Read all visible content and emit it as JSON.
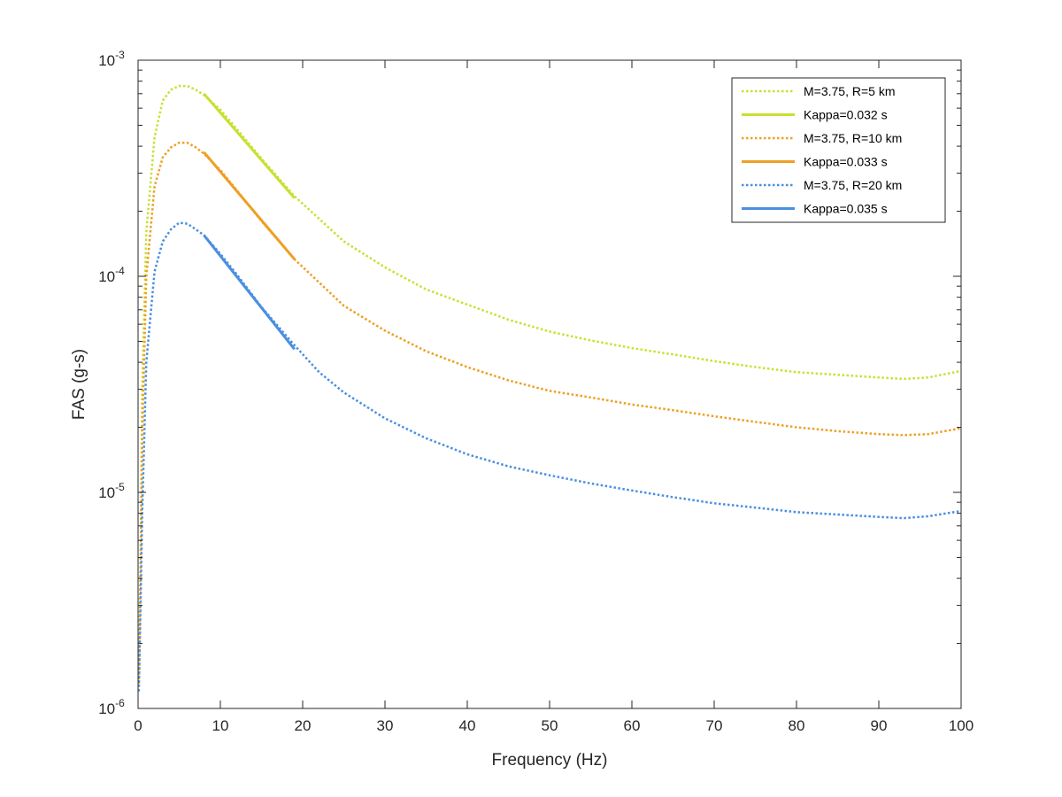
{
  "chart_data": {
    "type": "line",
    "title": "",
    "xlabel": "Frequency (Hz)",
    "ylabel": "FAS (g-s)",
    "xlim": [
      0,
      100
    ],
    "ylim": [
      1e-06,
      0.001
    ],
    "yscale": "log",
    "grid": false,
    "legend_position": "top-right",
    "x_ticks": [
      0,
      10,
      20,
      30,
      40,
      50,
      60,
      70,
      80,
      90,
      100
    ],
    "x_tick_labels": [
      "0",
      "10",
      "20",
      "30",
      "40",
      "50",
      "60",
      "70",
      "80",
      "90",
      "100"
    ],
    "y_ticks": [
      {
        "value": 1e-06,
        "base": "10",
        "exp": "-6"
      },
      {
        "value": 1e-05,
        "base": "10",
        "exp": "-5"
      },
      {
        "value": 0.0001,
        "base": "10",
        "exp": "-4"
      },
      {
        "value": 0.001,
        "base": "10",
        "exp": "-3"
      }
    ],
    "series": [
      {
        "name": "M=3.75, R=5 km",
        "color": "#C9E031",
        "style": "dotted",
        "points": [
          [
            0.1,
            1.5e-06
          ],
          [
            0.3,
            5e-06
          ],
          [
            0.5,
            3e-05
          ],
          [
            1,
            0.00016
          ],
          [
            2,
            0.00044
          ],
          [
            3,
            0.00065
          ],
          [
            4,
            0.00073
          ],
          [
            5,
            0.00076
          ],
          [
            6,
            0.00076
          ],
          [
            7,
            0.00073
          ],
          [
            8,
            0.00069
          ],
          [
            10,
            0.00059
          ],
          [
            12,
            0.00048
          ],
          [
            15,
            0.00035
          ],
          [
            19,
            0.000235
          ],
          [
            25,
            0.000145
          ],
          [
            30,
            0.00011
          ],
          [
            35,
            8.7e-05
          ],
          [
            40,
            7.4e-05
          ],
          [
            45,
            6.3e-05
          ],
          [
            50,
            5.55e-05
          ],
          [
            55,
            5.05e-05
          ],
          [
            60,
            4.65e-05
          ],
          [
            65,
            4.35e-05
          ],
          [
            70,
            4.05e-05
          ],
          [
            75,
            3.8e-05
          ],
          [
            80,
            3.6e-05
          ],
          [
            85,
            3.5e-05
          ],
          [
            90,
            3.4e-05
          ],
          [
            93,
            3.35e-05
          ],
          [
            96,
            3.4e-05
          ],
          [
            100,
            3.65e-05
          ]
        ]
      },
      {
        "name": "Kappa=0.032 s",
        "color": "#C9E031",
        "style": "solid",
        "points": [
          [
            8,
            0.0007
          ],
          [
            19,
            0.00023
          ]
        ]
      },
      {
        "name": "M=3.75, R=10 km",
        "color": "#EDA024",
        "style": "dotted",
        "points": [
          [
            0.1,
            1.3e-06
          ],
          [
            0.3,
            4e-06
          ],
          [
            0.5,
            1.9e-05
          ],
          [
            1,
            0.0001
          ],
          [
            2,
            0.00026
          ],
          [
            3,
            0.000355
          ],
          [
            4,
            0.000395
          ],
          [
            5,
            0.000415
          ],
          [
            6,
            0.000415
          ],
          [
            7,
            0.000395
          ],
          [
            8,
            0.00037
          ],
          [
            10,
            0.00031
          ],
          [
            12,
            0.00025
          ],
          [
            15,
            0.00018
          ],
          [
            19,
            0.00012
          ],
          [
            25,
            7.3e-05
          ],
          [
            30,
            5.6e-05
          ],
          [
            35,
            4.5e-05
          ],
          [
            40,
            3.8e-05
          ],
          [
            45,
            3.3e-05
          ],
          [
            50,
            2.95e-05
          ],
          [
            55,
            2.75e-05
          ],
          [
            60,
            2.55e-05
          ],
          [
            65,
            2.4e-05
          ],
          [
            70,
            2.25e-05
          ],
          [
            75,
            2.12e-05
          ],
          [
            80,
            2e-05
          ],
          [
            85,
            1.92e-05
          ],
          [
            90,
            1.86e-05
          ],
          [
            93,
            1.84e-05
          ],
          [
            96,
            1.86e-05
          ],
          [
            100,
            1.98e-05
          ]
        ]
      },
      {
        "name": "Kappa=0.033 s",
        "color": "#EDA024",
        "style": "solid",
        "points": [
          [
            8,
            0.000375
          ],
          [
            19,
            0.00012
          ]
        ]
      },
      {
        "name": "M=3.75, R=20 km",
        "color": "#4A8FE0",
        "style": "dotted",
        "points": [
          [
            0.1,
            1.2e-06
          ],
          [
            0.3,
            3e-06
          ],
          [
            0.5,
            8e-06
          ],
          [
            1,
            4e-05
          ],
          [
            2,
            0.000105
          ],
          [
            3,
            0.000145
          ],
          [
            4,
            0.000165
          ],
          [
            5,
            0.000177
          ],
          [
            6,
            0.000175
          ],
          [
            7,
            0.000165
          ],
          [
            8,
            0.000155
          ],
          [
            10,
            0.000127
          ],
          [
            12,
            0.000102
          ],
          [
            15,
            7.2e-05
          ],
          [
            19,
            4.8e-05
          ],
          [
            22,
            3.6e-05
          ],
          [
            25,
            2.9e-05
          ],
          [
            30,
            2.2e-05
          ],
          [
            35,
            1.78e-05
          ],
          [
            40,
            1.5e-05
          ],
          [
            45,
            1.32e-05
          ],
          [
            50,
            1.2e-05
          ],
          [
            55,
            1.1e-05
          ],
          [
            60,
            1.02e-05
          ],
          [
            65,
            9.5e-06
          ],
          [
            70,
            8.9e-06
          ],
          [
            75,
            8.5e-06
          ],
          [
            80,
            8.1e-06
          ],
          [
            85,
            7.9e-06
          ],
          [
            90,
            7.7e-06
          ],
          [
            93,
            7.6e-06
          ],
          [
            96,
            7.75e-06
          ],
          [
            100,
            8.2e-06
          ]
        ]
      },
      {
        "name": "Kappa=0.035 s",
        "color": "#4A8FE0",
        "style": "solid",
        "points": [
          [
            8,
            0.000155
          ],
          [
            19,
            4.6e-05
          ]
        ]
      }
    ]
  }
}
